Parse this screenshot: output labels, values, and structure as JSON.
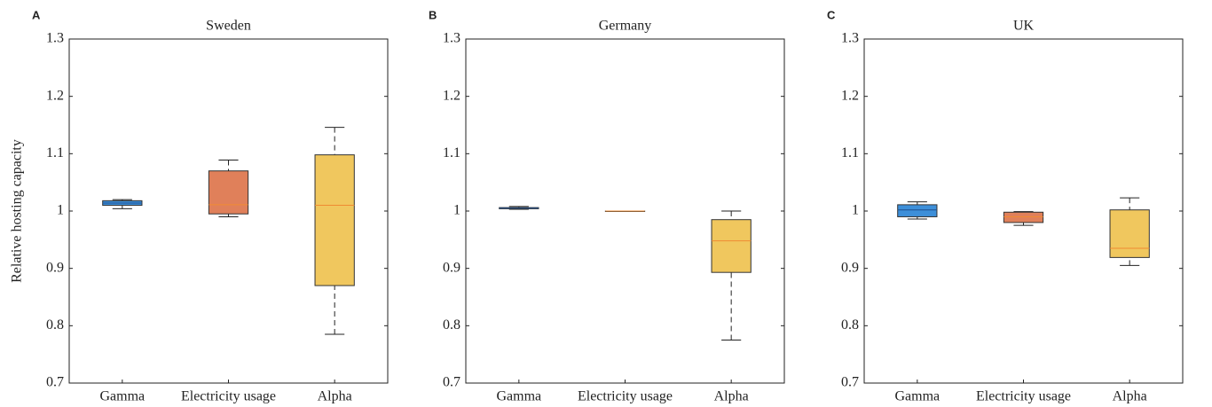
{
  "chart_data": [
    {
      "type": "box",
      "panel_label": "A",
      "title": "Sweden",
      "ylabel": "Relative hosting capacity",
      "categories": [
        "Gamma",
        "Electricity usage",
        "Alpha"
      ],
      "colors": [
        "#3d8fd9",
        "#e0805a",
        "#f0c75e"
      ],
      "median_color": "#ef8b33",
      "boxes": [
        {
          "low": 1.004,
          "q1": 1.01,
          "median": 1.014,
          "q3": 1.018,
          "high": 1.02
        },
        {
          "low": 0.99,
          "q1": 0.995,
          "median": 1.011,
          "q3": 1.07,
          "high": 1.089
        },
        {
          "low": 0.785,
          "q1": 0.87,
          "median": 1.01,
          "q3": 1.098,
          "high": 1.146
        }
      ],
      "ylim": [
        0.7,
        1.3
      ],
      "yticks": [
        0.7,
        0.8,
        0.9,
        1,
        1.1,
        1.2,
        1.3
      ]
    },
    {
      "type": "box",
      "panel_label": "B",
      "title": "Germany",
      "categories": [
        "Gamma",
        "Electricity usage",
        "Alpha"
      ],
      "colors": [
        "#3d8fd9",
        "#e0805a",
        "#f0c75e"
      ],
      "median_color": "#ef8b33",
      "boxes": [
        {
          "low": 1.003,
          "q1": 1.004,
          "median": 1.005,
          "q3": 1.006,
          "high": 1.008
        },
        {
          "low": 1,
          "q1": 1,
          "median": 1,
          "q3": 1,
          "high": 1
        },
        {
          "low": 0.775,
          "q1": 0.893,
          "median": 0.948,
          "q3": 0.985,
          "high": 1
        }
      ],
      "ylim": [
        0.7,
        1.3
      ],
      "yticks": [
        0.7,
        0.8,
        0.9,
        1,
        1.1,
        1.2,
        1.3
      ]
    },
    {
      "type": "box",
      "panel_label": "C",
      "title": "UK",
      "categories": [
        "Gamma",
        "Electricity usage",
        "Alpha"
      ],
      "colors": [
        "#3d8fd9",
        "#e0805a",
        "#f0c75e"
      ],
      "median_color": "#ef8b33",
      "boxes": [
        {
          "low": 0.986,
          "q1": 0.99,
          "median": 1.002,
          "q3": 1.011,
          "high": 1.016
        },
        {
          "low": 0.975,
          "q1": 0.98,
          "median": 0.99,
          "q3": 0.998,
          "high": 0.999
        },
        {
          "low": 0.905,
          "q1": 0.919,
          "median": 0.935,
          "q3": 1.002,
          "high": 1.023
        }
      ],
      "ylim": [
        0.7,
        1.3
      ],
      "yticks": [
        0.7,
        0.8,
        0.9,
        1,
        1.1,
        1.2,
        1.3
      ]
    }
  ]
}
